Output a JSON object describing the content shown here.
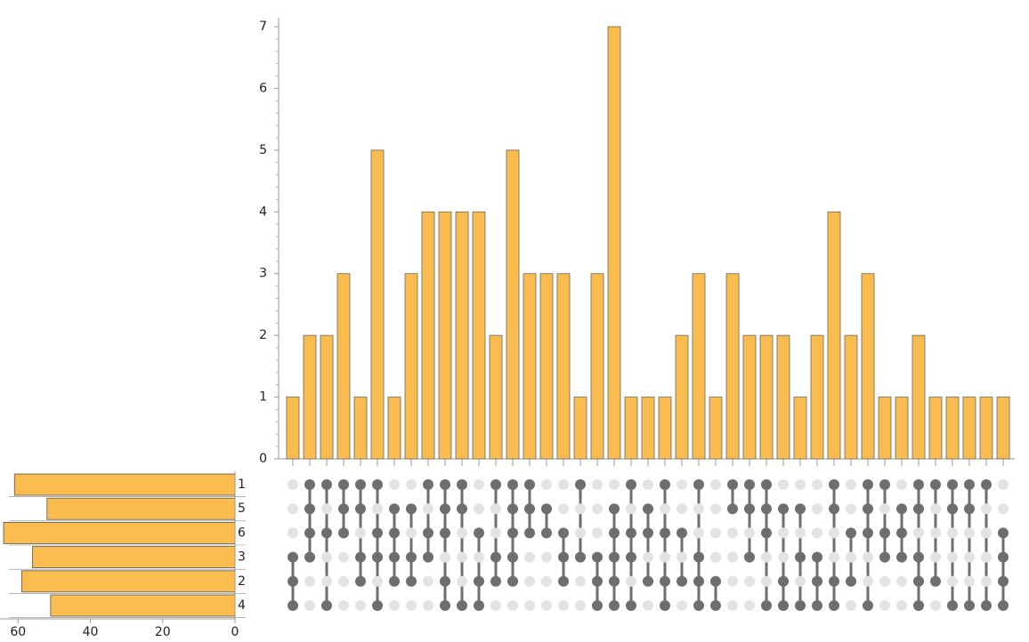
{
  "chart_data": {
    "type": "upset",
    "values": [
      1,
      2,
      2,
      3,
      1,
      5,
      1,
      3,
      4,
      4,
      4,
      4,
      2,
      5,
      3,
      3,
      3,
      1,
      3,
      7,
      1,
      1,
      1,
      2,
      3,
      1,
      3,
      2,
      2,
      2,
      1,
      2,
      4,
      2,
      3,
      1,
      1,
      2,
      1,
      1,
      1,
      1,
      1
    ],
    "color": "#fbbc4f",
    "ylim": [
      0,
      7
    ],
    "yticks": [
      0,
      1,
      2,
      3,
      4,
      5,
      6,
      7
    ],
    "sets": [
      "1",
      "5",
      "6",
      "3",
      "2",
      "4"
    ],
    "set_sizes": [
      61,
      52,
      64,
      56,
      59,
      51
    ],
    "xlim": [
      0,
      65
    ],
    "xticks": [
      0,
      20,
      40,
      60
    ],
    "memberships": [
      [
        "3",
        "2",
        "4"
      ],
      [
        "1",
        "5",
        "6",
        "3"
      ],
      [
        "1",
        "6",
        "4"
      ],
      [
        "1",
        "5",
        "6"
      ],
      [
        "1",
        "5",
        "3",
        "2"
      ],
      [
        "1",
        "6",
        "3",
        "4"
      ],
      [
        "5",
        "6",
        "3",
        "2"
      ],
      [
        "5",
        "3",
        "2"
      ],
      [
        "1",
        "6",
        "3"
      ],
      [
        "1",
        "5",
        "6",
        "2",
        "4"
      ],
      [
        "1",
        "5",
        "4"
      ],
      [
        "6",
        "2",
        "4"
      ],
      [
        "1",
        "3",
        "2"
      ],
      [
        "1",
        "5",
        "6",
        "3",
        "2"
      ],
      [
        "1",
        "5",
        "6"
      ],
      [
        "5",
        "6"
      ],
      [
        "6",
        "3",
        "2"
      ],
      [
        "1",
        "3"
      ],
      [
        "3",
        "2",
        "4"
      ],
      [
        "5",
        "6",
        "3",
        "2",
        "4"
      ],
      [
        "1",
        "6",
        "3",
        "4"
      ],
      [
        "5",
        "6",
        "2"
      ],
      [
        "1",
        "6",
        "2",
        "4"
      ],
      [
        "6",
        "2"
      ],
      [
        "1",
        "3",
        "2",
        "4"
      ],
      [
        "2",
        "4"
      ],
      [
        "1",
        "5"
      ],
      [
        "1",
        "5",
        "3"
      ],
      [
        "1",
        "5",
        "6",
        "4"
      ],
      [
        "5",
        "2",
        "4"
      ],
      [
        "5",
        "3",
        "4"
      ],
      [
        "3",
        "2",
        "4"
      ],
      [
        "1",
        "5",
        "2",
        "4"
      ],
      [
        "6",
        "2"
      ],
      [
        "1",
        "5",
        "6",
        "4"
      ],
      [
        "1",
        "6",
        "3"
      ],
      [
        "5",
        "6",
        "3"
      ],
      [
        "1",
        "5",
        "3",
        "2",
        "4"
      ],
      [
        "1",
        "2"
      ],
      [
        "1",
        "5",
        "4"
      ],
      [
        "1",
        "5",
        "4"
      ],
      [
        "1",
        "4"
      ],
      [
        "6",
        "3",
        "2",
        "4"
      ]
    ]
  }
}
